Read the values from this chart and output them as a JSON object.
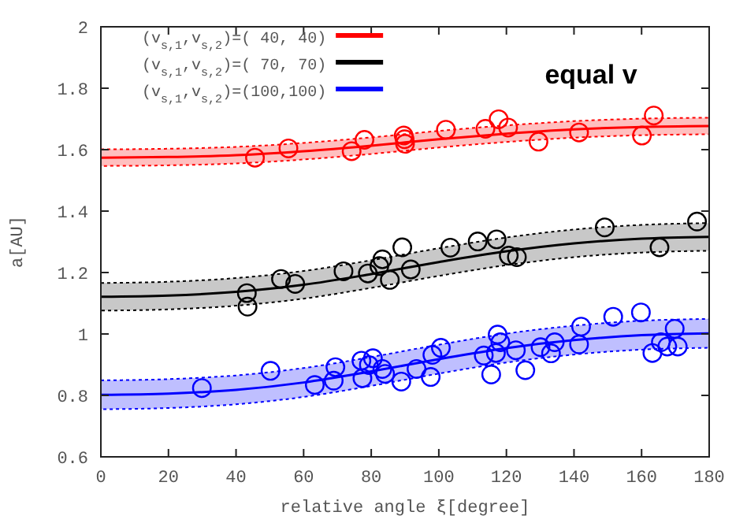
{
  "chart_data": {
    "type": "line",
    "xlabel": "relative angle ξ[degree]",
    "ylabel": "a[AU]",
    "annotations": [
      "equal v"
    ],
    "xlim": [
      0,
      180
    ],
    "xticks": [
      0,
      20,
      40,
      60,
      80,
      100,
      120,
      140,
      160,
      180
    ],
    "ylim": [
      0.6,
      2
    ],
    "yticks": [
      0.6,
      0.8,
      1,
      1.2,
      1.4,
      1.6,
      1.8,
      2
    ],
    "grid": false,
    "legend": "top left",
    "line_style": "solid",
    "series": [
      {
        "name": "(v$_{s,1}$,v$_{s,2}$)=( 40, 40)",
        "color": "#ff0000",
        "x": [
          0,
          20,
          40,
          60,
          80,
          100,
          120,
          140,
          160,
          180
        ],
        "values": [
          1.574,
          1.576,
          1.582,
          1.595,
          1.613,
          1.634,
          1.652,
          1.666,
          1.674,
          1.677
        ],
        "lower": [
          1.547,
          1.549,
          1.555,
          1.568,
          1.586,
          1.607,
          1.625,
          1.639,
          1.647,
          1.65
        ],
        "upper": [
          1.601,
          1.603,
          1.609,
          1.622,
          1.64,
          1.661,
          1.679,
          1.693,
          1.701,
          1.704
        ]
      },
      {
        "name": "(v$_{s,1}$,v$_{s,2}$)=( 70, 70)",
        "color": "#000000",
        "x": [
          0,
          20,
          40,
          60,
          80,
          100,
          120,
          140,
          160,
          180
        ],
        "values": [
          1.121,
          1.125,
          1.137,
          1.16,
          1.195,
          1.234,
          1.269,
          1.295,
          1.31,
          1.316
        ],
        "lower": [
          1.076,
          1.08,
          1.092,
          1.115,
          1.15,
          1.189,
          1.224,
          1.25,
          1.265,
          1.271
        ],
        "upper": [
          1.166,
          1.17,
          1.182,
          1.205,
          1.24,
          1.279,
          1.314,
          1.34,
          1.355,
          1.361
        ]
      },
      {
        "name": "(v$_{s,1}$,v$_{s,2}$)=(100,100)",
        "color": "#0000ff",
        "x": [
          0,
          20,
          40,
          60,
          80,
          100,
          120,
          140,
          160,
          180
        ],
        "values": [
          0.802,
          0.806,
          0.818,
          0.842,
          0.878,
          0.918,
          0.954,
          0.98,
          0.996,
          1.002
        ],
        "lower": [
          0.755,
          0.759,
          0.771,
          0.795,
          0.831,
          0.871,
          0.907,
          0.933,
          0.949,
          0.955
        ],
        "upper": [
          0.849,
          0.853,
          0.865,
          0.889,
          0.925,
          0.965,
          1.001,
          1.027,
          1.043,
          1.049
        ]
      },
      {
        "type": "scatter",
        "marker": "circle",
        "color": "#ff0000",
        "x": [
          45.6,
          55.5,
          74.2,
          78,
          89.6,
          89.9,
          90,
          102.1,
          113.8,
          117.7,
          120.5,
          129.5,
          141.5,
          160.1,
          163.6
        ],
        "values": [
          1.574,
          1.604,
          1.595,
          1.632,
          1.646,
          1.634,
          1.619,
          1.665,
          1.668,
          1.699,
          1.672,
          1.626,
          1.656,
          1.646,
          1.711
        ]
      },
      {
        "type": "scatter",
        "marker": "circle",
        "color": "#000000",
        "x": [
          43.2,
          43.4,
          53.3,
          57.5,
          71.8,
          79,
          82.4,
          83.3,
          85.5,
          89.2,
          91.7,
          103.4,
          111.5,
          117.1,
          120.7,
          123.1,
          149.1,
          165.3,
          176.4
        ],
        "values": [
          1.133,
          1.089,
          1.179,
          1.163,
          1.204,
          1.197,
          1.221,
          1.243,
          1.176,
          1.282,
          1.21,
          1.281,
          1.301,
          1.308,
          1.255,
          1.25,
          1.347,
          1.282,
          1.366
        ]
      },
      {
        "type": "scatter",
        "marker": "circle",
        "color": "#0000ff",
        "x": [
          29.9,
          50.2,
          63.3,
          68.9,
          69.4,
          77.1,
          77.4,
          79.3,
          80.5,
          83.3,
          84.1,
          88.9,
          93.4,
          97.6,
          98.1,
          100.6,
          113.3,
          115.5,
          116.9,
          117.4,
          118.2,
          122.8,
          125.6,
          130.1,
          133.2,
          134.3,
          141.5,
          142.1,
          151.6,
          159.8,
          163.2,
          165.7,
          167.6,
          169.8,
          170.7
        ],
        "values": [
          0.824,
          0.88,
          0.834,
          0.848,
          0.892,
          0.913,
          0.856,
          0.899,
          0.921,
          0.886,
          0.87,
          0.845,
          0.886,
          0.86,
          0.932,
          0.955,
          0.93,
          0.868,
          0.938,
          0.998,
          0.973,
          0.947,
          0.882,
          0.957,
          0.937,
          0.973,
          0.966,
          1.024,
          1.056,
          1.07,
          0.938,
          0.973,
          0.959,
          1.017,
          0.959
        ]
      }
    ]
  }
}
